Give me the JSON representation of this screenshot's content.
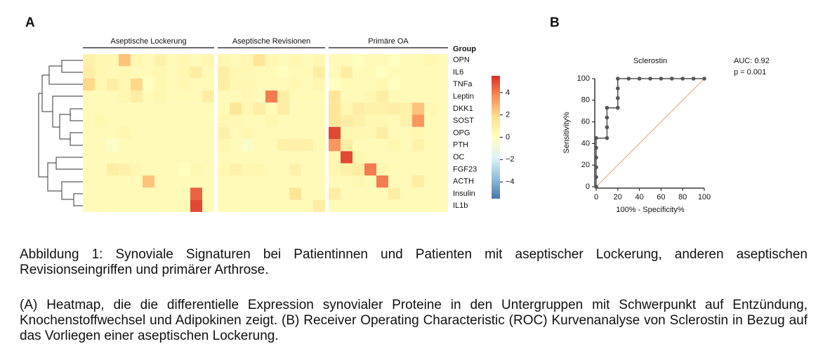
{
  "panel_labels": [
    "A",
    "B"
  ],
  "chart_data": [
    {
      "type": "heatmap",
      "groups": [
        {
          "name": "Aseptische Lockerung",
          "size": 11
        },
        {
          "name": "Aseptische Revisionen",
          "size": 9
        },
        {
          "name": "Primäre OA",
          "size": 10
        }
      ],
      "group_label": "Group",
      "rows": [
        "OPN",
        "IL6",
        "TNFa",
        "Leptin",
        "DKK1",
        "SOST",
        "OPG",
        "PTH",
        "OC",
        "FGF23",
        "ACTH",
        "Insulin",
        "IL1b"
      ],
      "values": [
        [
          0.8,
          0.5,
          0.5,
          2.5,
          0.5,
          0.3,
          0.8,
          0.3,
          0.5,
          0.3,
          0.5,
          0.5,
          0.3,
          0.5,
          1.5,
          0.5,
          0.3,
          0.5,
          0.3,
          0.5,
          0.3,
          0.3,
          0,
          0.3,
          0.3,
          0,
          0.3,
          0.3,
          0.5,
          0.3
        ],
        [
          1,
          0.5,
          0.3,
          0.5,
          0.3,
          0.3,
          0.5,
          0.3,
          0.5,
          1,
          0.3,
          1,
          0.5,
          0.5,
          0.3,
          0.3,
          0,
          0.3,
          0.3,
          1,
          0.3,
          1,
          0.3,
          0.3,
          0,
          0.3,
          0.3,
          0.3,
          0.3,
          0.3
        ],
        [
          2,
          0.5,
          1,
          0.5,
          2,
          0,
          0.5,
          0.3,
          0.5,
          0.3,
          0.3,
          1,
          0.5,
          0.5,
          0.3,
          0.3,
          0.3,
          0.5,
          0.3,
          0.5,
          0,
          0.3,
          0.3,
          0.3,
          0.5,
          0,
          0.3,
          0.3,
          0.3,
          0.3
        ],
        [
          0.3,
          0.3,
          0.3,
          0.5,
          1,
          0.3,
          0.5,
          0.3,
          0.3,
          0.3,
          1,
          0.3,
          0.3,
          0.5,
          0.3,
          4,
          1,
          0.3,
          0.3,
          0.3,
          1.5,
          0.3,
          0.3,
          0.5,
          1,
          0.3,
          0.3,
          0.3,
          0.3,
          0.3
        ],
        [
          0.3,
          0.3,
          0.3,
          0.3,
          0.3,
          0.3,
          0.3,
          0.3,
          0.3,
          0.3,
          0.3,
          0.3,
          1.5,
          0.5,
          1,
          0.3,
          1,
          0.3,
          0.3,
          0.3,
          1.5,
          0.5,
          1,
          0.8,
          0.8,
          1,
          0.8,
          2.5,
          0.5,
          0.3
        ],
        [
          0.3,
          0.5,
          0.3,
          0.3,
          0.3,
          0.3,
          0.3,
          0.3,
          0.3,
          0.3,
          0.3,
          0.5,
          0.5,
          0.3,
          0.3,
          0.5,
          0.3,
          0.3,
          0.3,
          0.3,
          1.5,
          1,
          0.8,
          0.5,
          0.5,
          0.3,
          0.8,
          3.5,
          0.3,
          0.3
        ],
        [
          0.3,
          0.3,
          0.3,
          0.5,
          0.3,
          0.3,
          0.3,
          0.3,
          0.3,
          0.3,
          0.3,
          0.8,
          0.3,
          0.5,
          0.3,
          0.3,
          0.3,
          0.3,
          0.3,
          0.3,
          5,
          0.5,
          0.5,
          0.5,
          1,
          0.3,
          0.3,
          0.5,
          0.3,
          0.3
        ],
        [
          0.3,
          0.3,
          -0.3,
          0.3,
          0.3,
          0.3,
          0.3,
          0.3,
          0.3,
          0.3,
          0.3,
          0.5,
          0.3,
          -0.3,
          0.3,
          0.3,
          0.8,
          0.8,
          0.8,
          0.3,
          3.5,
          1,
          0.3,
          0.3,
          0.3,
          0.5,
          0.3,
          0.8,
          0.3,
          0.3
        ],
        [
          0.3,
          0.3,
          0.3,
          0.3,
          0.3,
          0.3,
          0.3,
          0.3,
          0.3,
          0.3,
          0.3,
          0.3,
          0.3,
          0.3,
          0.3,
          0.3,
          0.3,
          0.3,
          0.3,
          0.3,
          0.5,
          5,
          0.5,
          0.3,
          0.3,
          0.3,
          0.3,
          0.3,
          0.3,
          0.3
        ],
        [
          0.3,
          0.3,
          1,
          0.8,
          0.5,
          0.3,
          0.3,
          0.3,
          0,
          0.5,
          0.3,
          0.5,
          0.8,
          0.5,
          0.5,
          0.3,
          0.3,
          0.8,
          0.3,
          0.3,
          0.5,
          0.8,
          1,
          4,
          0.5,
          0.3,
          0.3,
          0.3,
          0.3,
          0.3
        ],
        [
          0.3,
          0.3,
          0.3,
          0.3,
          0.3,
          2.5,
          0.3,
          0.3,
          0.3,
          0.3,
          0.3,
          0.3,
          0.3,
          0.3,
          0.3,
          0.3,
          0.3,
          0.3,
          0.3,
          0.3,
          0.3,
          0.3,
          0.5,
          0.3,
          4,
          0.3,
          0.3,
          1,
          0.3,
          0.3
        ],
        [
          0.3,
          0.3,
          0.3,
          0.3,
          0.3,
          0.3,
          0.3,
          0.3,
          0.3,
          4.5,
          0.3,
          0.3,
          0.3,
          0.3,
          0.3,
          0.3,
          0.3,
          1.5,
          0.3,
          0.3,
          1,
          0.3,
          0.3,
          0.3,
          0.3,
          1,
          0.3,
          0.3,
          0.3,
          0.3
        ],
        [
          0.3,
          0.3,
          0.3,
          0.3,
          0.3,
          0.3,
          0.3,
          0.3,
          0.3,
          5,
          0.3,
          0.3,
          0.3,
          0.3,
          0.3,
          0.3,
          0.3,
          0.3,
          0.3,
          1,
          0.3,
          0.3,
          0.3,
          0.3,
          0.3,
          0.3,
          0.3,
          0.3,
          0.3,
          0.3
        ]
      ],
      "zlim": [
        -5.5,
        5.5
      ],
      "zticks": [
        {
          "value": 4,
          "label": "4"
        },
        {
          "value": 2,
          "label": "2"
        },
        {
          "value": 0,
          "label": "0"
        },
        {
          "value": -2,
          "label": "−2"
        },
        {
          "value": -4,
          "label": "−4"
        }
      ],
      "colors": [
        "#4575b4",
        "#91bfdb",
        "#e0f3f8",
        "#ffffbf",
        "#fee090",
        "#fc8d59",
        "#d73027"
      ]
    },
    {
      "type": "line",
      "title": "Sclerostin",
      "annotations": [
        "AUC: 0.92",
        "p = 0.001"
      ],
      "x_label": "100% - Specificity%",
      "y_label": "Sensitivity%",
      "series": [
        {
          "name": "Sclerostin",
          "color": "#555555",
          "x": [
            0,
            0,
            0,
            0,
            0,
            0,
            10,
            10,
            10,
            10,
            20,
            20,
            20,
            20,
            30,
            40,
            50,
            60,
            70,
            80,
            90,
            100
          ],
          "values": [
            0,
            9,
            18,
            27,
            36,
            45,
            45,
            55,
            64,
            73,
            73,
            82,
            91,
            100,
            100,
            100,
            100,
            100,
            100,
            100,
            100,
            100
          ]
        }
      ],
      "xlim": [
        0,
        100
      ],
      "ylim": [
        0,
        100
      ],
      "xticks": [
        0,
        20,
        40,
        60,
        80,
        100
      ],
      "yticks": [
        0,
        20,
        40,
        60,
        80,
        100
      ]
    }
  ],
  "caption": {
    "title": "Abbildung 1: Synoviale Signaturen bei Patientinnen und Patienten mit aseptischer Lockerung, anderen aseptischen Revisionseingriffen und primärer Arthrose.",
    "text": "(A) Heatmap, die die differentielle Expression synovialer Proteine in den Untergruppen mit Schwerpunkt auf Entzündung, Knochenstoffwechsel und Adipokinen zeigt. (B) Receiver Operating Characteristic (ROC) Kurvenanalyse von Sclerostin in Bezug auf das Vorliegen einer aseptischen Lockerung."
  }
}
